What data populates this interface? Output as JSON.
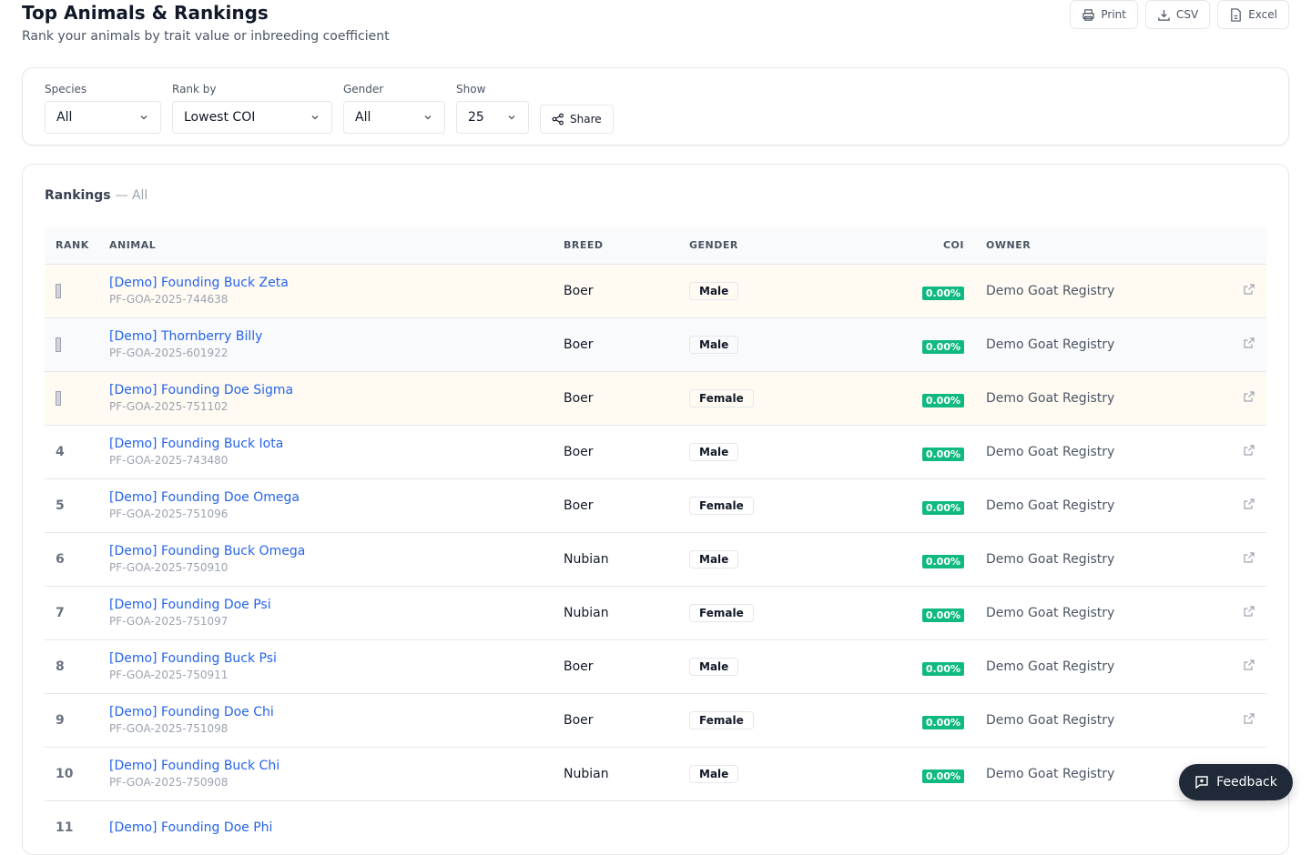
{
  "header": {
    "title": "Top Animals & Rankings",
    "subtitle": "Rank your animals by trait value or inbreeding coefficient",
    "print": "Print",
    "csv": "CSV",
    "excel": "Excel"
  },
  "filters": {
    "species_label": "Species",
    "species": "All",
    "rank_label": "Rank by",
    "rank": "Lowest COI",
    "gender_label": "Gender",
    "gender": "All",
    "show_label": "Show",
    "show": "25",
    "share": "Share"
  },
  "rankings": {
    "title": "Rankings",
    "suffix": "— All",
    "columns": [
      "RANK",
      "ANIMAL",
      "BREED",
      "GENDER",
      "COI",
      "OWNER"
    ],
    "rows": [
      {
        "rank": "1",
        "medal": "gold",
        "name": "[Demo] Founding Buck Zeta",
        "id": "PF-GOA-2025-744638",
        "breed": "Boer",
        "gender": "Male",
        "coi": "0.00%",
        "owner": "Demo Goat Registry"
      },
      {
        "rank": "2",
        "medal": "silver",
        "name": "[Demo] Thornberry Billy",
        "id": "PF-GOA-2025-601922",
        "breed": "Boer",
        "gender": "Male",
        "coi": "0.00%",
        "owner": "Demo Goat Registry"
      },
      {
        "rank": "3",
        "medal": "bronze",
        "name": "[Demo] Founding Doe Sigma",
        "id": "PF-GOA-2025-751102",
        "breed": "Boer",
        "gender": "Female",
        "coi": "0.00%",
        "owner": "Demo Goat Registry"
      },
      {
        "rank": "4",
        "name": "[Demo] Founding Buck Iota",
        "id": "PF-GOA-2025-743480",
        "breed": "Boer",
        "gender": "Male",
        "coi": "0.00%",
        "owner": "Demo Goat Registry"
      },
      {
        "rank": "5",
        "name": "[Demo] Founding Doe Omega",
        "id": "PF-GOA-2025-751096",
        "breed": "Boer",
        "gender": "Female",
        "coi": "0.00%",
        "owner": "Demo Goat Registry"
      },
      {
        "rank": "6",
        "name": "[Demo] Founding Buck Omega",
        "id": "PF-GOA-2025-750910",
        "breed": "Nubian",
        "gender": "Male",
        "coi": "0.00%",
        "owner": "Demo Goat Registry"
      },
      {
        "rank": "7",
        "name": "[Demo] Founding Doe Psi",
        "id": "PF-GOA-2025-751097",
        "breed": "Nubian",
        "gender": "Female",
        "coi": "0.00%",
        "owner": "Demo Goat Registry"
      },
      {
        "rank": "8",
        "name": "[Demo] Founding Buck Psi",
        "id": "PF-GOA-2025-750911",
        "breed": "Boer",
        "gender": "Male",
        "coi": "0.00%",
        "owner": "Demo Goat Registry"
      },
      {
        "rank": "9",
        "name": "[Demo] Founding Doe Chi",
        "id": "PF-GOA-2025-751098",
        "breed": "Boer",
        "gender": "Female",
        "coi": "0.00%",
        "owner": "Demo Goat Registry"
      },
      {
        "rank": "10",
        "name": "[Demo] Founding Buck Chi",
        "id": "PF-GOA-2025-750908",
        "breed": "Nubian",
        "gender": "Male",
        "coi": "0.00%",
        "owner": "Demo Goat Registry"
      },
      {
        "rank": "11",
        "name": "[Demo] Founding Doe Phi",
        "id": "",
        "breed": "",
        "gender": "",
        "coi": "",
        "owner": ""
      }
    ]
  },
  "feedback": "Feedback",
  "colors": {
    "link": "#2563eb",
    "coi_badge": "#10b981",
    "feedback_bg": "#1f2937"
  }
}
